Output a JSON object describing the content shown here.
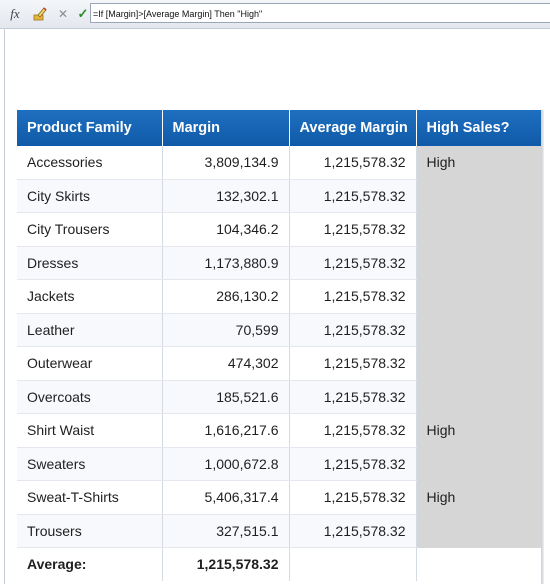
{
  "toolbar": {
    "formula_text": "=If [Margin]>[Average Margin] Then \"High\"",
    "icons": [
      "fx-icon",
      "edit-formula-icon",
      "cancel-icon",
      "validate-icon"
    ]
  },
  "table": {
    "headers": [
      "Product Family",
      "Margin",
      "Average Margin",
      "High Sales?"
    ],
    "rows": [
      {
        "family": "Accessories",
        "margin": "3,809,134.9",
        "avg": "1,215,578.32",
        "high": "High"
      },
      {
        "family": "City Skirts",
        "margin": "132,302.1",
        "avg": "1,215,578.32",
        "high": ""
      },
      {
        "family": "City Trousers",
        "margin": "104,346.2",
        "avg": "1,215,578.32",
        "high": ""
      },
      {
        "family": "Dresses",
        "margin": "1,173,880.9",
        "avg": "1,215,578.32",
        "high": ""
      },
      {
        "family": "Jackets",
        "margin": "286,130.2",
        "avg": "1,215,578.32",
        "high": ""
      },
      {
        "family": "Leather",
        "margin": "70,599",
        "avg": "1,215,578.32",
        "high": ""
      },
      {
        "family": "Outerwear",
        "margin": "474,302",
        "avg": "1,215,578.32",
        "high": ""
      },
      {
        "family": "Overcoats",
        "margin": "185,521.6",
        "avg": "1,215,578.32",
        "high": ""
      },
      {
        "family": "Shirt Waist",
        "margin": "1,616,217.6",
        "avg": "1,215,578.32",
        "high": "High"
      },
      {
        "family": "Sweaters",
        "margin": "1,000,672.8",
        "avg": "1,215,578.32",
        "high": ""
      },
      {
        "family": "Sweat-T-Shirts",
        "margin": "5,406,317.4",
        "avg": "1,215,578.32",
        "high": "High"
      },
      {
        "family": "Trousers",
        "margin": "327,515.1",
        "avg": "1,215,578.32",
        "high": ""
      }
    ],
    "footer": {
      "label": "Average:",
      "value": "1,215,578.32"
    }
  },
  "colors": {
    "header_bg": "#1565b4",
    "flag_column_bg": "#d6d6d6"
  }
}
